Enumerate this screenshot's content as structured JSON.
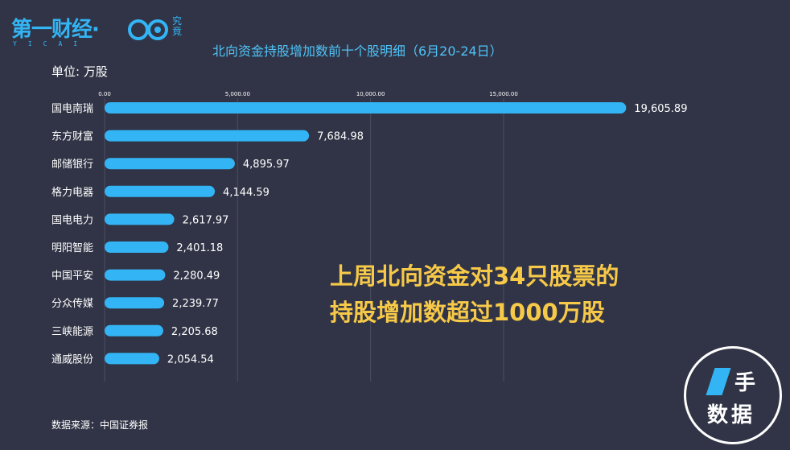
{
  "brand": {
    "name": "第一财经·",
    "subtitle": "YICAI",
    "logo2_text": "究竟",
    "accent": "#33b5f5"
  },
  "header": {
    "title": "北向资金持股增加数前十个股明细（6月20-24日）",
    "unit_label": "单位: 万股"
  },
  "chart_data": {
    "type": "bar",
    "orientation": "horizontal",
    "title": "北向资金持股增加数前十个股明细（6月20-24日）",
    "unit": "万股",
    "categories": [
      "国电南瑞",
      "东方财富",
      "邮储银行",
      "格力电器",
      "国电电力",
      "明阳智能",
      "中国平安",
      "分众传媒",
      "三峡能源",
      "通威股份"
    ],
    "values": [
      19605.89,
      7684.98,
      4895.97,
      4144.59,
      2617.97,
      2401.18,
      2280.49,
      2239.77,
      2205.68,
      2054.54
    ],
    "value_labels": [
      "19,605.89",
      "7,684.98",
      "4,895.97",
      "4,144.59",
      "2,617.97",
      "2,401.18",
      "2,280.49",
      "2,239.77",
      "2,205.68",
      "2,054.54"
    ],
    "x_ticks": [
      0,
      5000,
      10000,
      15000
    ],
    "x_tick_labels": [
      "0.00",
      "5,000.00",
      "10,000.00",
      "15,000.00"
    ],
    "xlim": [
      0,
      20000
    ],
    "grid": true,
    "bar_color": "#33b5f5"
  },
  "callout": {
    "line1": "上周北向资金对34只股票的",
    "line2": "持股增加数超过1000万股",
    "color": "#f7c948"
  },
  "footer": {
    "source": "数据来源：中国证券报"
  },
  "badge": {
    "line1": "手",
    "line2": "数据"
  }
}
